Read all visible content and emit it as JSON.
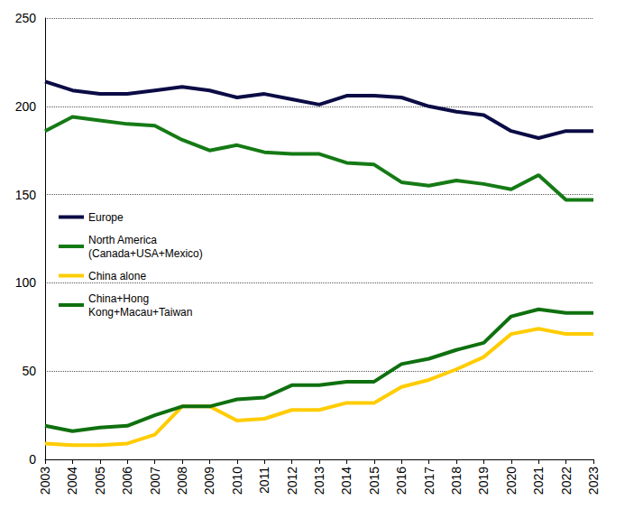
{
  "chart_data": {
    "type": "line",
    "categories": [
      "2003",
      "2004",
      "2005",
      "2006",
      "2007",
      "2008",
      "2009",
      "2010",
      "2011",
      "2012",
      "2013",
      "2014",
      "2015",
      "2016",
      "2017",
      "2018",
      "2019",
      "2020",
      "2021",
      "2022",
      "2023"
    ],
    "series": [
      {
        "name": "Europe",
        "color": "#0b0b45",
        "values": [
          214,
          209,
          207,
          207,
          209,
          211,
          209,
          205,
          207,
          204,
          201,
          206,
          206,
          205,
          200,
          197,
          195,
          186,
          182,
          186,
          186
        ]
      },
      {
        "name": "North America\n(Canada+USA+Mexico)",
        "color": "#157a15",
        "values": [
          186,
          194,
          192,
          190,
          189,
          181,
          175,
          178,
          174,
          173,
          173,
          168,
          167,
          157,
          155,
          158,
          156,
          153,
          161,
          147,
          147
        ]
      },
      {
        "name": "China alone",
        "color": "#ffcc00",
        "values": [
          9,
          8,
          8,
          9,
          14,
          30,
          30,
          22,
          23,
          28,
          28,
          32,
          32,
          41,
          45,
          51,
          58,
          71,
          74,
          71,
          71
        ]
      },
      {
        "name": "China+Hong\nKong+Macau+Taiwan",
        "color": "#0f700f",
        "values": [
          19,
          16,
          18,
          19,
          25,
          30,
          30,
          34,
          35,
          42,
          42,
          44,
          44,
          54,
          57,
          62,
          66,
          81,
          85,
          83,
          83
        ]
      }
    ],
    "ylim": [
      0,
      250
    ],
    "yticks": [
      0,
      50,
      100,
      150,
      200,
      250
    ],
    "grid": true,
    "legend": "left"
  }
}
